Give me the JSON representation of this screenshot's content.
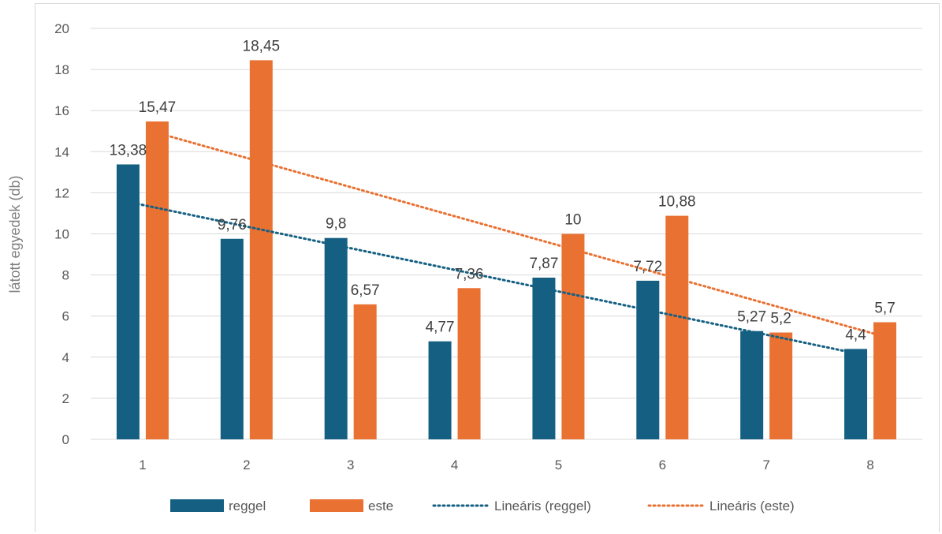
{
  "chart_data": {
    "type": "bar",
    "categories": [
      "1",
      "2",
      "3",
      "4",
      "5",
      "6",
      "7",
      "8"
    ],
    "series": [
      {
        "name": "reggel",
        "values": [
          13.38,
          9.76,
          9.8,
          4.77,
          7.87,
          7.72,
          5.27,
          4.4
        ],
        "labels": [
          "13,38",
          "9,76",
          "9,8",
          "4,77",
          "7,87",
          "7,72",
          "5,27",
          "4,4"
        ],
        "color": "#156082"
      },
      {
        "name": "este",
        "values": [
          15.47,
          18.45,
          6.57,
          7.36,
          10,
          10.88,
          5.2,
          5.7
        ],
        "labels": [
          "15,47",
          "18,45",
          "6,57",
          "7,36",
          "10",
          "10,88",
          "5,2",
          "5,7"
        ],
        "color": "#e97132"
      }
    ],
    "trendlines": [
      {
        "name": "Lineáris (reggel)",
        "series": "reggel",
        "type": "linear",
        "color": "#156082"
      },
      {
        "name": "Lineáris (este)",
        "series": "este",
        "type": "linear",
        "color": "#e97132"
      }
    ],
    "ylabel": "látott egyedek (db)",
    "xlabel": "",
    "ylim": [
      0,
      20
    ],
    "yticks": [
      "0",
      "2",
      "4",
      "6",
      "8",
      "10",
      "12",
      "14",
      "16",
      "18",
      "20"
    ],
    "grid": true,
    "legend_position": "bottom"
  }
}
